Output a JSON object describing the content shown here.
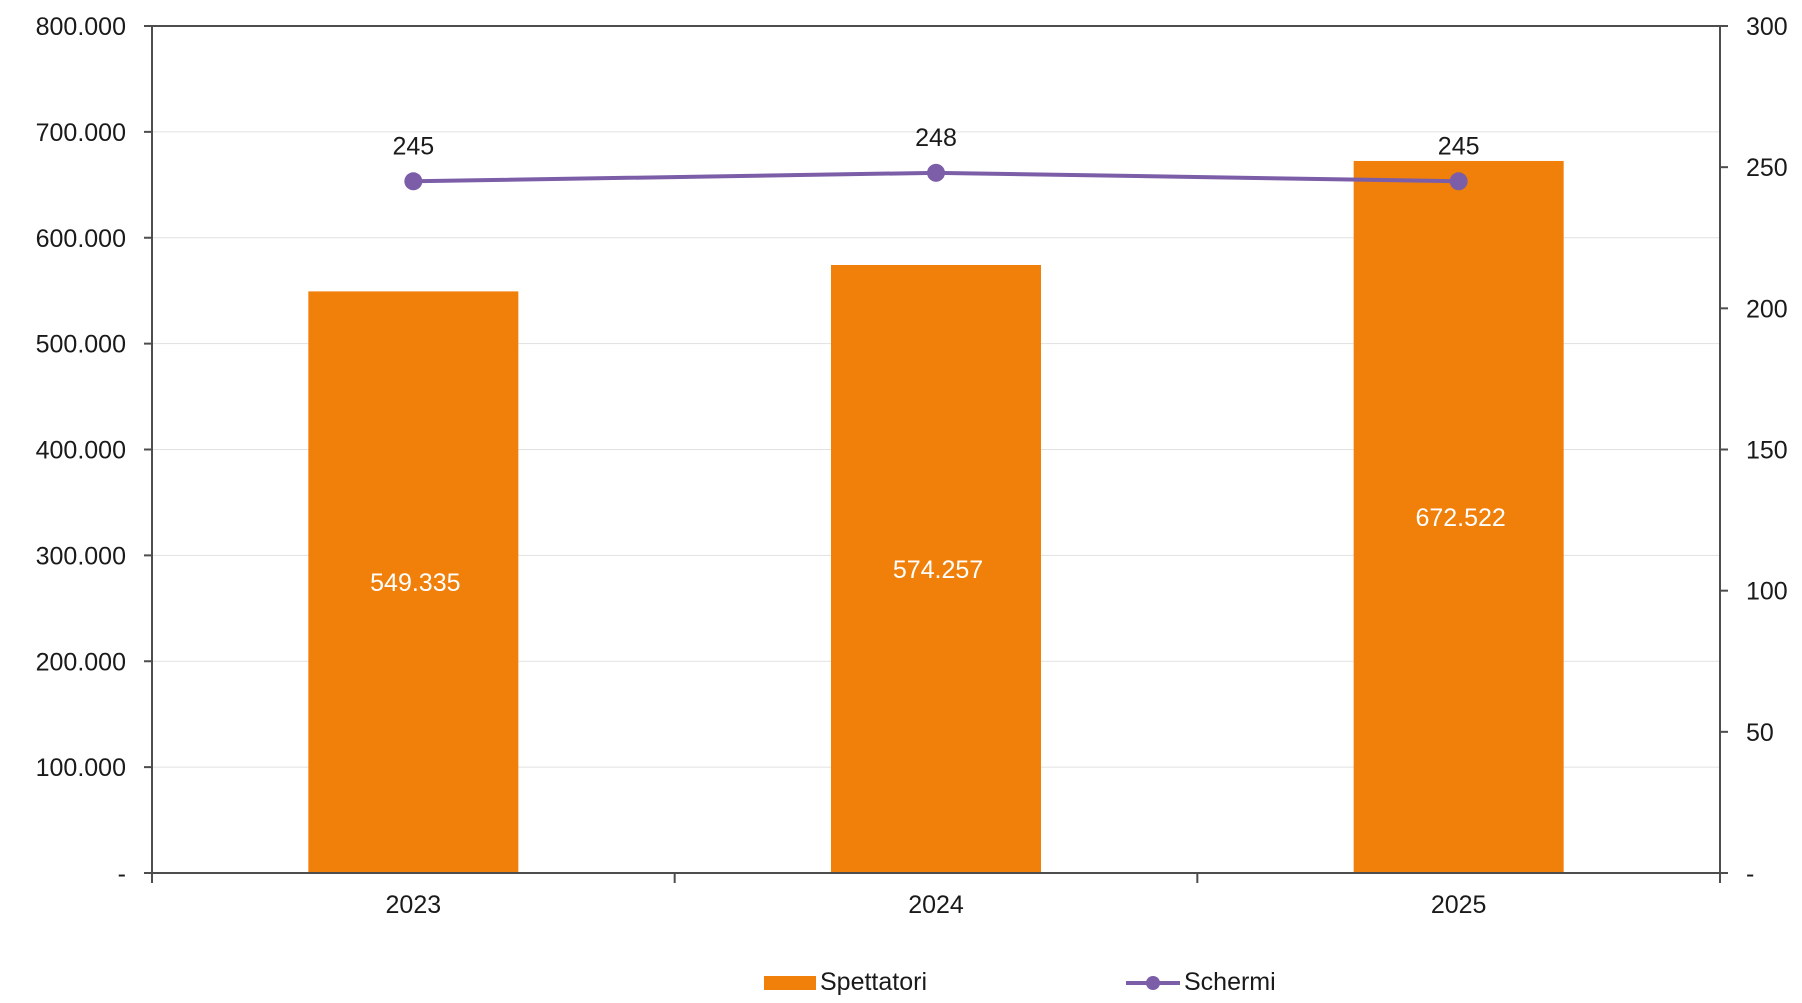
{
  "chart_data": {
    "type": "bar",
    "categories": [
      "2023",
      "2024",
      "2025"
    ],
    "series": [
      {
        "name": "Spettatori",
        "type": "bar",
        "axis": "left",
        "values": [
          549335,
          574257,
          672522
        ],
        "labels": [
          "549.335",
          "574.257",
          "672.522"
        ],
        "color": "#F0800A",
        "label_color": "#FFFFFF"
      },
      {
        "name": "Schermi",
        "type": "line",
        "axis": "right",
        "values": [
          245,
          248,
          245
        ],
        "labels": [
          "245",
          "248",
          "245"
        ],
        "color": "#7B5EA7",
        "label_color": "#1A1A1A"
      }
    ],
    "y_left": {
      "min": 0,
      "max": 800000,
      "ticks": [
        0,
        100000,
        200000,
        300000,
        400000,
        500000,
        600000,
        700000,
        800000
      ],
      "tick_labels": [
        "-",
        "100.000",
        "200.000",
        "300.000",
        "400.000",
        "500.000",
        "600.000",
        "700.000",
        "800.000"
      ]
    },
    "y_right": {
      "min": 0,
      "max": 300,
      "ticks": [
        0,
        50,
        100,
        150,
        200,
        250,
        300
      ],
      "tick_labels": [
        "-",
        "50",
        "100",
        "150",
        "200",
        "250",
        "300"
      ]
    },
    "grid": true,
    "legend_position": "bottom"
  }
}
